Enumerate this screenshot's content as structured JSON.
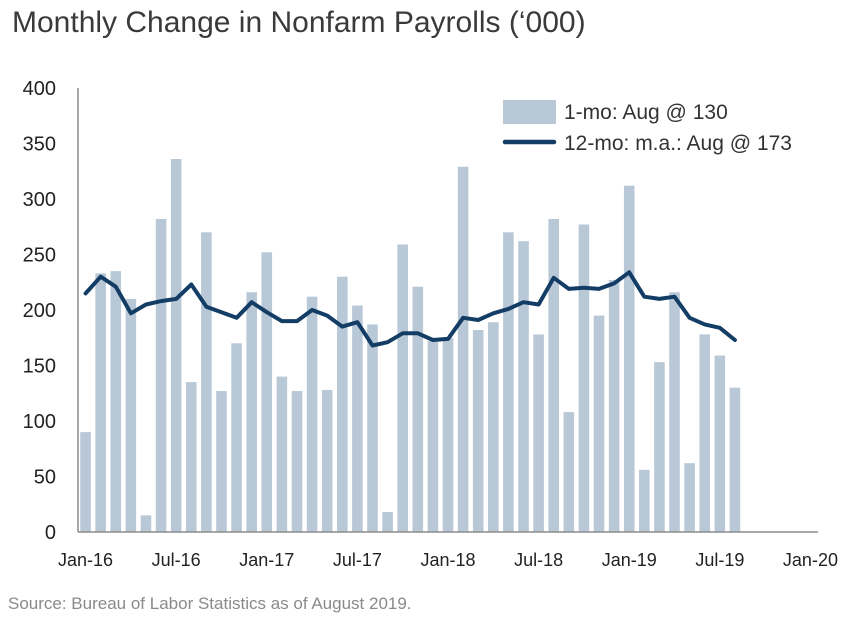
{
  "title": "Monthly Change in Nonfarm Payrolls (‘000)",
  "source": "Source: Bureau of Labor Statistics as of August 2019.",
  "chart_data": {
    "type": "bar",
    "title": "Monthly Change in Nonfarm Payrolls (‘000)",
    "ylim": [
      0,
      400
    ],
    "y_ticks": [
      0,
      50,
      100,
      150,
      200,
      250,
      300,
      350,
      400
    ],
    "x_ticks": [
      {
        "label": "Jan-16",
        "month": "2016-01"
      },
      {
        "label": "Jul-16",
        "month": "2016-07"
      },
      {
        "label": "Jan-17",
        "month": "2017-01"
      },
      {
        "label": "Jul-17",
        "month": "2017-07"
      },
      {
        "label": "Jan-18",
        "month": "2018-01"
      },
      {
        "label": "Jul-18",
        "month": "2018-07"
      },
      {
        "label": "Jan-19",
        "month": "2019-01"
      },
      {
        "label": "Jul-19",
        "month": "2019-07"
      },
      {
        "label": "Jan-20",
        "month": "2020-01"
      }
    ],
    "x_range": [
      "2016-01",
      "2020-02"
    ],
    "grid": false,
    "legend_position": "top-right",
    "colors": {
      "bar": "#b8c8d6",
      "line": "#143d66",
      "axis": "#8c8c8c"
    },
    "months": [
      "2016-01",
      "2016-02",
      "2016-03",
      "2016-04",
      "2016-05",
      "2016-06",
      "2016-07",
      "2016-08",
      "2016-09",
      "2016-10",
      "2016-11",
      "2016-12",
      "2017-01",
      "2017-02",
      "2017-03",
      "2017-04",
      "2017-05",
      "2017-06",
      "2017-07",
      "2017-08",
      "2017-09",
      "2017-10",
      "2017-11",
      "2017-12",
      "2018-01",
      "2018-02",
      "2018-03",
      "2018-04",
      "2018-05",
      "2018-06",
      "2018-07",
      "2018-08",
      "2018-09",
      "2018-10",
      "2018-11",
      "2018-12",
      "2019-01",
      "2019-02",
      "2019-03",
      "2019-04",
      "2019-05",
      "2019-06",
      "2019-07",
      "2019-08"
    ],
    "series": [
      {
        "name": "1-mo: Aug @ 130",
        "type": "bar",
        "values": [
          90,
          233,
          235,
          210,
          15,
          282,
          336,
          135,
          270,
          127,
          170,
          216,
          252,
          140,
          127,
          212,
          128,
          230,
          204,
          187,
          18,
          259,
          221,
          172,
          175,
          329,
          182,
          189,
          270,
          262,
          178,
          282,
          108,
          277,
          195,
          227,
          312,
          56,
          153,
          216,
          62,
          178,
          159,
          130
        ]
      },
      {
        "name": "12-mo: m.a.: Aug @ 173",
        "type": "line",
        "values": [
          215,
          230,
          221,
          197,
          205,
          208,
          210,
          223,
          203,
          198,
          193,
          207,
          198,
          190,
          190,
          200,
          195,
          185,
          189,
          168,
          171,
          179,
          179,
          173,
          174,
          193,
          191,
          197,
          201,
          207,
          205,
          229,
          219,
          220,
          219,
          224,
          234,
          212,
          210,
          212,
          193,
          187,
          184,
          173
        ]
      }
    ]
  }
}
